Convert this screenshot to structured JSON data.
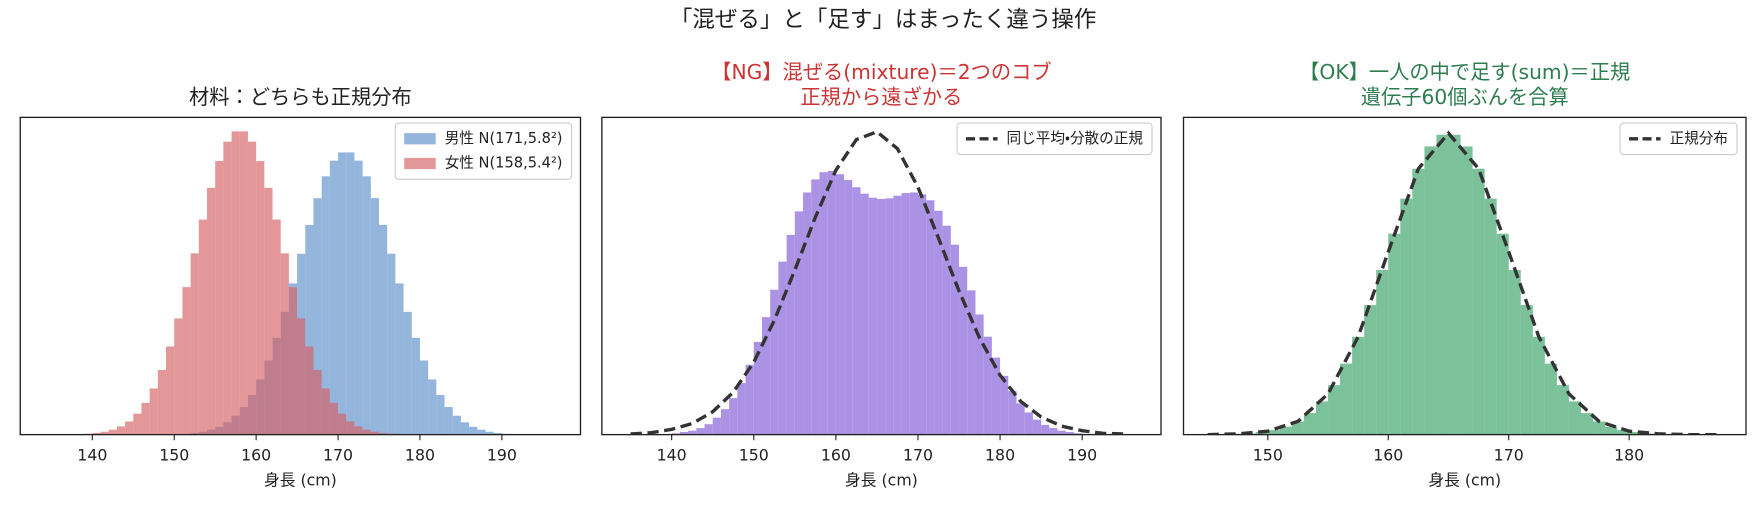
{
  "title": "「混ぜる」と「足す」はまったく違う操作",
  "chart_data": [
    {
      "type": "histogram",
      "title": [
        "材料：どちらも正規分布"
      ],
      "title_color": "#222222",
      "x_label": "身長 (cm)",
      "bins": [
        135,
        136,
        137,
        138,
        139,
        140,
        141,
        142,
        143,
        144,
        145,
        146,
        147,
        148,
        149,
        150,
        151,
        152,
        153,
        154,
        155,
        156,
        157,
        158,
        159,
        160,
        161,
        162,
        163,
        164,
        165,
        166,
        167,
        168,
        169,
        170,
        171,
        172,
        173,
        174,
        175,
        176,
        177,
        178,
        179,
        180,
        181,
        182,
        183,
        184,
        185,
        186,
        187,
        188,
        189,
        190,
        191,
        192,
        193,
        194,
        195
      ],
      "alpha": 0.65,
      "series": [
        {
          "name": "男性 N(171,5.8²)",
          "color": "#5b8fc9",
          "values": [
            0,
            0,
            0,
            0,
            0,
            0,
            0,
            0,
            0,
            0,
            0,
            0,
            0,
            0,
            0,
            0.0001,
            0.0002,
            0.0004,
            0.0007,
            0.0012,
            0.0019,
            0.003,
            0.0046,
            0.0067,
            0.0096,
            0.0134,
            0.018,
            0.0235,
            0.0298,
            0.0367,
            0.0439,
            0.0509,
            0.0574,
            0.0627,
            0.0665,
            0.0685,
            0.0685,
            0.0665,
            0.0627,
            0.0574,
            0.0509,
            0.0439,
            0.0367,
            0.0298,
            0.0235,
            0.018,
            0.0134,
            0.0096,
            0.0067,
            0.0046,
            0.003,
            0.0019,
            0.0012,
            0.0007,
            0.0004,
            0.0002,
            0.0001,
            0.0001,
            0,
            0
          ]
        },
        {
          "name": "女性 N(158,5.4²)",
          "color": "#d65f63",
          "values": [
            0,
            0,
            0.0001,
            0.0001,
            0.0002,
            0.0004,
            0.0007,
            0.0012,
            0.002,
            0.0032,
            0.0051,
            0.0077,
            0.0112,
            0.0157,
            0.0214,
            0.0282,
            0.0358,
            0.044,
            0.0522,
            0.0599,
            0.0664,
            0.0711,
            0.0736,
            0.0736,
            0.0711,
            0.0664,
            0.0599,
            0.0522,
            0.044,
            0.0358,
            0.0282,
            0.0214,
            0.0157,
            0.0112,
            0.0077,
            0.0051,
            0.0032,
            0.002,
            0.0012,
            0.0007,
            0.0004,
            0.0002,
            0.0001,
            0.0001,
            0,
            0,
            0,
            0,
            0,
            0,
            0,
            0,
            0,
            0,
            0,
            0,
            0,
            0,
            0,
            0
          ]
        }
      ],
      "lines": [],
      "xlim": [
        131.2,
        199.6
      ],
      "xticks": [
        140,
        150,
        160,
        170,
        180,
        190
      ],
      "ylim": [
        0,
        0.077
      ],
      "legend": "upper right"
    },
    {
      "type": "histogram",
      "title": [
        "【NG】混ぜる(mixture)＝2つのコブ",
        "正規から遠ざかる"
      ],
      "title_color": "#cc3333",
      "x_label": "身長 (cm)",
      "bins": [
        135,
        136,
        137,
        138,
        139,
        140,
        141,
        142,
        143,
        144,
        145,
        146,
        147,
        148,
        149,
        150,
        151,
        152,
        153,
        154,
        155,
        156,
        157,
        158,
        159,
        160,
        161,
        162,
        163,
        164,
        165,
        166,
        167,
        168,
        169,
        170,
        171,
        172,
        173,
        174,
        175,
        176,
        177,
        178,
        179,
        180,
        181,
        182,
        183,
        184,
        185,
        186,
        187,
        188,
        189,
        190,
        191,
        192,
        193,
        194,
        195
      ],
      "alpha": 0.85,
      "series": [
        {
          "color": "#9d7fe0",
          "values": [
            0,
            0,
            0.0001,
            0.0001,
            0.0001,
            0.0002,
            0.0004,
            0.0006,
            0.001,
            0.0016,
            0.0026,
            0.0039,
            0.0056,
            0.0079,
            0.0107,
            0.0142,
            0.018,
            0.0222,
            0.0265,
            0.0306,
            0.0342,
            0.0371,
            0.0391,
            0.0402,
            0.0404,
            0.0399,
            0.039,
            0.0379,
            0.0369,
            0.0363,
            0.0361,
            0.0362,
            0.0366,
            0.037,
            0.0371,
            0.0368,
            0.0359,
            0.0343,
            0.032,
            0.0291,
            0.0257,
            0.0221,
            0.0184,
            0.015,
            0.0118,
            0.009,
            0.0067,
            0.0048,
            0.0034,
            0.0023,
            0.0015,
            0.001,
            0.0006,
            0.0004,
            0.0002,
            0.0001,
            0.0001,
            0.0001,
            0,
            0
          ]
        }
      ],
      "lines": [
        {
          "name": "同じ平均・分散の正規",
          "color": "#333333",
          "x": [
            135,
            137.5,
            140,
            142.5,
            145,
            147.5,
            150,
            152.5,
            155,
            157.5,
            160,
            162.5,
            165,
            167.5,
            170,
            172.5,
            175,
            177.5,
            180,
            182.5,
            185,
            187.5,
            190,
            192.5,
            195
          ],
          "values": [
            0.0001,
            0.0003,
            0.0008,
            0.0017,
            0.0035,
            0.0065,
            0.0111,
            0.0175,
            0.0252,
            0.0333,
            0.0405,
            0.0452,
            0.0464,
            0.0438,
            0.0379,
            0.0301,
            0.022,
            0.0148,
            0.0091,
            0.0051,
            0.0027,
            0.0013,
            0.0006,
            0.0002,
            0.0001
          ]
        }
      ],
      "xlim": [
        131.5,
        199.6
      ],
      "xticks": [
        140,
        150,
        160,
        170,
        180,
        190
      ],
      "ylim": [
        0,
        0.0486
      ],
      "legend": "upper right"
    },
    {
      "type": "histogram",
      "title": [
        "【OK】一人の中で足す(sum)＝正規",
        "遺伝子60個ぶんを合算"
      ],
      "title_color": "#2e7d4f",
      "x_label": "身長 (cm)",
      "bins": [
        147,
        148,
        149,
        150,
        151,
        152,
        153,
        154,
        155,
        156,
        157,
        158,
        159,
        160,
        161,
        162,
        163,
        164,
        165,
        166,
        167,
        168,
        169,
        170,
        171,
        172,
        173,
        174,
        175,
        176,
        177,
        178,
        179,
        180,
        181,
        182,
        183
      ],
      "alpha": 0.75,
      "series": [
        {
          "color": "#4fac78",
          "values": [
            0.0002,
            0.0003,
            0.0007,
            0.0012,
            0.0021,
            0.0035,
            0.0057,
            0.0088,
            0.0131,
            0.0188,
            0.0259,
            0.0343,
            0.0436,
            0.0532,
            0.0625,
            0.0704,
            0.0763,
            0.0794,
            0.0794,
            0.0763,
            0.0704,
            0.0625,
            0.0532,
            0.0436,
            0.0343,
            0.0259,
            0.0188,
            0.0131,
            0.0088,
            0.0057,
            0.0035,
            0.0021,
            0.0012,
            0.0007,
            0.0003,
            0.0002
          ]
        }
      ],
      "lines": [
        {
          "name": "正規分布",
          "color": "#333333",
          "x": [
            145,
            147.5,
            150,
            152.5,
            155,
            157.5,
            160,
            162.5,
            165,
            167.5,
            170,
            172.5,
            175,
            177.5,
            180,
            182.5,
            185,
            187.5
          ],
          "values": [
            0,
            0.0002,
            0.0009,
            0.0035,
            0.0108,
            0.0259,
            0.0484,
            0.0704,
            0.0798,
            0.0704,
            0.0484,
            0.0259,
            0.0108,
            0.0035,
            0.0009,
            0.0002,
            0,
            0
          ]
        }
      ],
      "xlim": [
        143,
        189.7
      ],
      "xticks": [
        150,
        160,
        170,
        180
      ],
      "ylim": [
        0,
        0.084
      ],
      "legend": "upper right"
    }
  ]
}
